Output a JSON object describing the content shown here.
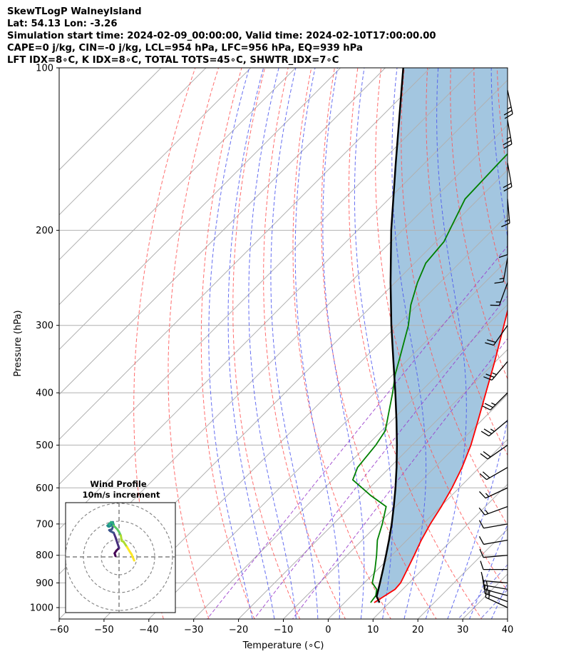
{
  "header": {
    "title": "SkewTLogP WalneyIsland",
    "location": "Lat: 54.13   Lon: -3.26",
    "times": "Simulation start time: 2024-02-09_00:00:00, Valid time: 2024-02-10T17:00:00.00",
    "indices1": "CAPE=0 j/kg, CIN=-0 j/kg, LCL=954 hPa, LFC=956 hPa, EQ=939 hPa",
    "indices2": "LFT IDX=8∘C, K IDX=8∘C, TOTAL TOTS=45∘C, SHWTR_IDX=7∘C"
  },
  "chart_data": {
    "type": "skewt",
    "xlabel": "Temperature (∘C)",
    "ylabel": "Pressure (hPa)",
    "xlim": [
      -60,
      40
    ],
    "ylim": [
      1050,
      100
    ],
    "x_ticks": [
      "−60",
      "−50",
      "−40",
      "−30",
      "−20",
      "−10",
      "0",
      "10",
      "20",
      "30",
      "40"
    ],
    "y_ticks": [
      "100",
      "200",
      "300",
      "400",
      "500",
      "600",
      "700",
      "800",
      "900",
      "1000"
    ],
    "y_tick_values": [
      100,
      200,
      300,
      400,
      500,
      600,
      700,
      800,
      900,
      1000
    ],
    "skew": 1.0,
    "log_pressure": true,
    "grid": true,
    "colors": {
      "temperature": "#ff0000",
      "dewpoint": "#008000",
      "parcel": "#000000",
      "cape_fill": "#a3c6e0",
      "dry_adiabat": "#ff5555",
      "moist_adiabat": "#4a55ee",
      "mixing_ratio": "#9a3fcc",
      "isotherm": "#b0b0b0",
      "ice_curve": "#6b6bdc"
    },
    "temperature_profile": [
      {
        "p": 979,
        "t": 6.6
      },
      {
        "p": 950,
        "t": 7.5
      },
      {
        "p": 925,
        "t": 8.3
      },
      {
        "p": 900,
        "t": 8.1
      },
      {
        "p": 850,
        "t": 6.6
      },
      {
        "p": 800,
        "t": 5.0
      },
      {
        "p": 750,
        "t": 3.2
      },
      {
        "p": 700,
        "t": 1.6
      },
      {
        "p": 650,
        "t": 0.2
      },
      {
        "p": 600,
        "t": -1.6
      },
      {
        "p": 550,
        "t": -3.9
      },
      {
        "p": 500,
        "t": -6.9
      },
      {
        "p": 450,
        "t": -10.8
      },
      {
        "p": 400,
        "t": -15.2
      },
      {
        "p": 350,
        "t": -20.2
      },
      {
        "p": 300,
        "t": -26.2
      },
      {
        "p": 275,
        "t": -29.6
      },
      {
        "p": 250,
        "t": -31.5
      },
      {
        "p": 240,
        "t": -30.6
      },
      {
        "p": 225,
        "t": -33.5
      },
      {
        "p": 200,
        "t": -37.5
      },
      {
        "p": 185,
        "t": -39.0
      },
      {
        "p": 175,
        "t": -40.0
      },
      {
        "p": 150,
        "t": -42.0
      },
      {
        "p": 125,
        "t": -44.5
      },
      {
        "p": 100,
        "t": -49.5
      }
    ],
    "dewpoint_profile": [
      {
        "p": 979,
        "t": 5.8
      },
      {
        "p": 950,
        "t": 5.4
      },
      {
        "p": 925,
        "t": 4.2
      },
      {
        "p": 900,
        "t": 1.8
      },
      {
        "p": 850,
        "t": -0.6
      },
      {
        "p": 800,
        "t": -3.4
      },
      {
        "p": 750,
        "t": -6.6
      },
      {
        "p": 700,
        "t": -9.1
      },
      {
        "p": 650,
        "t": -12.1
      },
      {
        "p": 620,
        "t": -18.0
      },
      {
        "p": 580,
        "t": -25.5
      },
      {
        "p": 550,
        "t": -27.2
      },
      {
        "p": 500,
        "t": -28.1
      },
      {
        "p": 470,
        "t": -29.2
      },
      {
        "p": 440,
        "t": -32.0
      },
      {
        "p": 400,
        "t": -36.0
      },
      {
        "p": 370,
        "t": -39.5
      },
      {
        "p": 340,
        "t": -42.7
      },
      {
        "p": 300,
        "t": -47.5
      },
      {
        "p": 275,
        "t": -51.5
      },
      {
        "p": 250,
        "t": -55.0
      },
      {
        "p": 230,
        "t": -57.5
      },
      {
        "p": 210,
        "t": -58.2
      },
      {
        "p": 200,
        "t": -59.5
      },
      {
        "p": 175,
        "t": -63.0
      },
      {
        "p": 150,
        "t": -63.5
      },
      {
        "p": 125,
        "t": -63.8
      },
      {
        "p": 100,
        "t": -64.5
      }
    ],
    "parcel_profile": [
      {
        "p": 979,
        "t": 7.8
      },
      {
        "p": 954,
        "t": 5.8
      },
      {
        "p": 900,
        "t": 3.5
      },
      {
        "p": 850,
        "t": 1.2
      },
      {
        "p": 800,
        "t": -1.3
      },
      {
        "p": 750,
        "t": -4.0
      },
      {
        "p": 700,
        "t": -7.0
      },
      {
        "p": 650,
        "t": -10.4
      },
      {
        "p": 600,
        "t": -14.2
      },
      {
        "p": 550,
        "t": -18.5
      },
      {
        "p": 500,
        "t": -23.4
      },
      {
        "p": 450,
        "t": -29.0
      },
      {
        "p": 400,
        "t": -35.4
      },
      {
        "p": 350,
        "t": -42.8
      },
      {
        "p": 300,
        "t": -51.3
      },
      {
        "p": 250,
        "t": -61.0
      },
      {
        "p": 200,
        "t": -72.5
      },
      {
        "p": 150,
        "t": -86.5
      },
      {
        "p": 100,
        "t": -106.0
      }
    ],
    "wind_barbs": [
      {
        "p": 1000,
        "dir": 295,
        "kt": 20
      },
      {
        "p": 975,
        "dir": 290,
        "kt": 15
      },
      {
        "p": 950,
        "dir": 285,
        "kt": 15
      },
      {
        "p": 925,
        "dir": 280,
        "kt": 15
      },
      {
        "p": 900,
        "dir": 275,
        "kt": 10
      },
      {
        "p": 850,
        "dir": 270,
        "kt": 10
      },
      {
        "p": 800,
        "dir": 265,
        "kt": 10
      },
      {
        "p": 750,
        "dir": 260,
        "kt": 10
      },
      {
        "p": 700,
        "dir": 260,
        "kt": 10
      },
      {
        "p": 650,
        "dir": 250,
        "kt": 15
      },
      {
        "p": 600,
        "dir": 245,
        "kt": 15
      },
      {
        "p": 550,
        "dir": 240,
        "kt": 20
      },
      {
        "p": 500,
        "dir": 235,
        "kt": 20
      },
      {
        "p": 450,
        "dir": 230,
        "kt": 25
      },
      {
        "p": 400,
        "dir": 225,
        "kt": 25
      },
      {
        "p": 350,
        "dir": 220,
        "kt": 25
      },
      {
        "p": 300,
        "dir": 215,
        "kt": 20
      },
      {
        "p": 250,
        "dir": 200,
        "kt": 15
      },
      {
        "p": 225,
        "dir": 190,
        "kt": 15
      },
      {
        "p": 200,
        "dir": 180,
        "kt": 10
      },
      {
        "p": 175,
        "dir": 175,
        "kt": 15
      },
      {
        "p": 150,
        "dir": 170,
        "kt": 20
      },
      {
        "p": 125,
        "dir": 170,
        "kt": 25
      },
      {
        "p": 110,
        "dir": 168,
        "kt": 25
      }
    ],
    "inset": {
      "title": "Wind Profile",
      "subtitle": "10m/s increment",
      "ring_increment_ms": 10,
      "rings": 3,
      "hodograph_uv": [
        [
          -2.0,
          0.5
        ],
        [
          -2.5,
          2.0
        ],
        [
          -1.5,
          3.5
        ],
        [
          -0.5,
          4.5
        ],
        [
          0.0,
          5.0
        ],
        [
          -1.0,
          8.0
        ],
        [
          -2.0,
          11.0
        ],
        [
          -3.0,
          13.5
        ],
        [
          -5.0,
          14.5
        ],
        [
          -5.5,
          15.0
        ],
        [
          -4.0,
          15.5
        ],
        [
          -3.0,
          18.0
        ],
        [
          -3.5,
          19.5
        ],
        [
          -4.0,
          19.0
        ],
        [
          -4.5,
          17.5
        ],
        [
          -5.5,
          17.0
        ],
        [
          -6.0,
          17.0
        ],
        [
          -6.5,
          17.5
        ],
        [
          -5.5,
          18.5
        ],
        [
          -4.5,
          19.5
        ],
        [
          -3.5,
          19.0
        ],
        [
          -3.0,
          17.5
        ],
        [
          -2.0,
          16.5
        ],
        [
          -1.0,
          15.5
        ],
        [
          0.0,
          14.0
        ],
        [
          1.0,
          12.0
        ],
        [
          1.5,
          9.0
        ],
        [
          2.5,
          8.5
        ],
        [
          4.5,
          5.5
        ],
        [
          6.0,
          3.0
        ],
        [
          7.0,
          1.5
        ],
        [
          8.5,
          -2.0
        ]
      ]
    }
  }
}
